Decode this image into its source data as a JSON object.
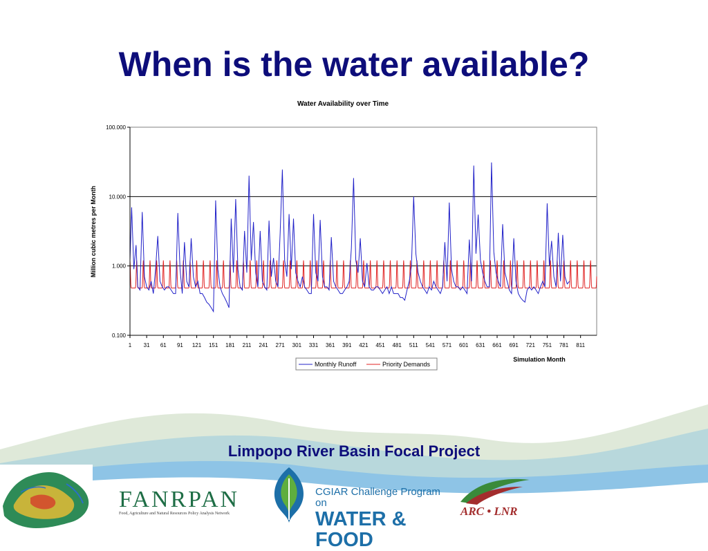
{
  "slide": {
    "title": "When is the water available?",
    "project_title": "Limpopo River Basin Focal Project"
  },
  "logos": {
    "fanrpan_name": "FANRPAN",
    "fanrpan_subtitle": "Food, Agriculture and Natural Resources Policy Analysis Network",
    "cgiar_line1": "CGIAR Challenge Program on",
    "cgiar_line2": "WATER & FOOD",
    "arc_text": "ARC • LNR"
  },
  "colors": {
    "title": "#0d0d7a",
    "runoff": "#2020c8",
    "demand": "#e02020",
    "wave_light": "#dfe9d9",
    "wave_blue": "#8ec4e6",
    "wave_teal": "#b8d8dc"
  },
  "chart_data": {
    "type": "line",
    "title": "Water Availability over Time",
    "xlabel": "Simulation Month",
    "ylabel": "Million cubic metres per Month",
    "yscale": "log",
    "ylim": [
      0.1,
      100
    ],
    "yticks": [
      "0.100",
      "1.000",
      "10.000",
      "100.000"
    ],
    "xlim": [
      1,
      840
    ],
    "xticks": [
      "1",
      "31",
      "61",
      "91",
      "121",
      "151",
      "181",
      "211",
      "241",
      "271",
      "301",
      "331",
      "361",
      "391",
      "421",
      "451",
      "481",
      "511",
      "541",
      "571",
      "601",
      "631",
      "661",
      "691",
      "721",
      "751",
      "781",
      "811"
    ],
    "grid": "horizontal",
    "legend_position": "bottom",
    "series": [
      {
        "name": "Monthly Runoff",
        "color": "#2020c8",
        "points": [
          [
            1,
            1.2
          ],
          [
            4,
            7.0
          ],
          [
            8,
            0.9
          ],
          [
            12,
            2.0
          ],
          [
            15,
            0.5
          ],
          [
            19,
            0.45
          ],
          [
            23,
            6.0
          ],
          [
            27,
            0.7
          ],
          [
            31,
            0.5
          ],
          [
            35,
            0.45
          ],
          [
            39,
            0.6
          ],
          [
            43,
            0.4
          ],
          [
            47,
            0.9
          ],
          [
            51,
            2.7
          ],
          [
            55,
            0.6
          ],
          [
            59,
            0.5
          ],
          [
            63,
            0.45
          ],
          [
            67,
            0.5
          ],
          [
            71,
            0.5
          ],
          [
            75,
            0.45
          ],
          [
            79,
            0.4
          ],
          [
            83,
            0.4
          ],
          [
            87,
            5.8
          ],
          [
            91,
            0.9
          ],
          [
            95,
            0.4
          ],
          [
            99,
            2.2
          ],
          [
            103,
            0.6
          ],
          [
            107,
            0.5
          ],
          [
            111,
            2.5
          ],
          [
            115,
            0.7
          ],
          [
            119,
            0.5
          ],
          [
            123,
            0.6
          ],
          [
            127,
            0.4
          ],
          [
            131,
            0.4
          ],
          [
            135,
            0.35
          ],
          [
            139,
            0.3
          ],
          [
            143,
            0.28
          ],
          [
            147,
            0.25
          ],
          [
            151,
            0.22
          ],
          [
            155,
            8.8
          ],
          [
            159,
            0.9
          ],
          [
            163,
            0.5
          ],
          [
            167,
            0.4
          ],
          [
            171,
            0.35
          ],
          [
            175,
            0.3
          ],
          [
            179,
            0.25
          ],
          [
            183,
            4.8
          ],
          [
            187,
            0.8
          ],
          [
            191,
            9.2
          ],
          [
            195,
            0.9
          ],
          [
            199,
            0.5
          ],
          [
            203,
            0.45
          ],
          [
            207,
            3.2
          ],
          [
            211,
            0.8
          ],
          [
            215,
            20.0
          ],
          [
            219,
            1.2
          ],
          [
            223,
            4.3
          ],
          [
            227,
            0.8
          ],
          [
            231,
            0.5
          ],
          [
            235,
            3.2
          ],
          [
            239,
            0.6
          ],
          [
            243,
            0.5
          ],
          [
            247,
            0.45
          ],
          [
            251,
            4.5
          ],
          [
            255,
            0.7
          ],
          [
            259,
            1.3
          ],
          [
            263,
            0.6
          ],
          [
            267,
            0.5
          ],
          [
            271,
            3.0
          ],
          [
            275,
            24.5
          ],
          [
            279,
            1.2
          ],
          [
            283,
            0.7
          ],
          [
            287,
            5.6
          ],
          [
            291,
            0.9
          ],
          [
            295,
            4.8
          ],
          [
            299,
            0.8
          ],
          [
            303,
            0.6
          ],
          [
            307,
            0.5
          ],
          [
            311,
            0.7
          ],
          [
            315,
            0.5
          ],
          [
            319,
            0.45
          ],
          [
            323,
            0.4
          ],
          [
            327,
            0.4
          ],
          [
            331,
            5.6
          ],
          [
            335,
            0.8
          ],
          [
            339,
            0.6
          ],
          [
            343,
            4.6
          ],
          [
            347,
            0.7
          ],
          [
            351,
            0.5
          ],
          [
            355,
            0.5
          ],
          [
            359,
            0.45
          ],
          [
            363,
            2.6
          ],
          [
            367,
            0.6
          ],
          [
            371,
            0.5
          ],
          [
            375,
            0.45
          ],
          [
            379,
            0.4
          ],
          [
            383,
            0.4
          ],
          [
            387,
            0.45
          ],
          [
            391,
            0.5
          ],
          [
            395,
            0.6
          ],
          [
            399,
            1.8
          ],
          [
            403,
            18.5
          ],
          [
            407,
            1.2
          ],
          [
            411,
            0.8
          ],
          [
            415,
            2.5
          ],
          [
            419,
            0.6
          ],
          [
            423,
            0.5
          ],
          [
            427,
            1.1
          ],
          [
            431,
            0.5
          ],
          [
            435,
            0.45
          ],
          [
            439,
            0.45
          ],
          [
            443,
            0.5
          ],
          [
            447,
            0.5
          ],
          [
            451,
            0.45
          ],
          [
            455,
            0.4
          ],
          [
            459,
            0.45
          ],
          [
            463,
            0.5
          ],
          [
            467,
            0.4
          ],
          [
            471,
            0.5
          ],
          [
            475,
            0.4
          ],
          [
            479,
            0.4
          ],
          [
            483,
            0.4
          ],
          [
            487,
            0.35
          ],
          [
            491,
            0.35
          ],
          [
            495,
            0.32
          ],
          [
            499,
            0.45
          ],
          [
            503,
            0.6
          ],
          [
            507,
            1.0
          ],
          [
            511,
            10.0
          ],
          [
            515,
            1.5
          ],
          [
            519,
            0.8
          ],
          [
            523,
            0.6
          ],
          [
            527,
            0.5
          ],
          [
            531,
            0.45
          ],
          [
            535,
            0.4
          ],
          [
            539,
            0.5
          ],
          [
            543,
            0.45
          ],
          [
            547,
            0.6
          ],
          [
            551,
            0.5
          ],
          [
            555,
            0.45
          ],
          [
            559,
            0.4
          ],
          [
            563,
            0.5
          ],
          [
            567,
            2.2
          ],
          [
            571,
            0.6
          ],
          [
            575,
            8.2
          ],
          [
            579,
            0.9
          ],
          [
            583,
            0.6
          ],
          [
            587,
            0.5
          ],
          [
            591,
            0.5
          ],
          [
            595,
            0.45
          ],
          [
            599,
            0.5
          ],
          [
            603,
            0.45
          ],
          [
            607,
            0.4
          ],
          [
            611,
            2.4
          ],
          [
            615,
            0.6
          ],
          [
            619,
            28.0
          ],
          [
            623,
            1.5
          ],
          [
            627,
            5.5
          ],
          [
            631,
            1.2
          ],
          [
            635,
            0.8
          ],
          [
            639,
            0.6
          ],
          [
            643,
            0.5
          ],
          [
            647,
            0.5
          ],
          [
            651,
            31.0
          ],
          [
            655,
            1.6
          ],
          [
            659,
            0.8
          ],
          [
            663,
            0.6
          ],
          [
            667,
            0.5
          ],
          [
            671,
            4.0
          ],
          [
            675,
            0.8
          ],
          [
            679,
            0.6
          ],
          [
            683,
            0.45
          ],
          [
            687,
            0.4
          ],
          [
            691,
            2.5
          ],
          [
            695,
            0.6
          ],
          [
            699,
            0.4
          ],
          [
            703,
            0.35
          ],
          [
            707,
            0.32
          ],
          [
            711,
            0.3
          ],
          [
            715,
            0.45
          ],
          [
            719,
            0.5
          ],
          [
            723,
            0.45
          ],
          [
            727,
            0.5
          ],
          [
            731,
            0.45
          ],
          [
            735,
            0.4
          ],
          [
            739,
            0.5
          ],
          [
            743,
            0.6
          ],
          [
            747,
            0.5
          ],
          [
            751,
            8.0
          ],
          [
            755,
            1.0
          ],
          [
            759,
            2.3
          ],
          [
            763,
            0.7
          ],
          [
            767,
            0.5
          ],
          [
            771,
            3.0
          ],
          [
            775,
            0.6
          ],
          [
            779,
            2.8
          ],
          [
            783,
            0.7
          ],
          [
            787,
            0.55
          ],
          [
            791,
            0.6
          ]
        ]
      },
      {
        "name": "Priority Demands",
        "color": "#e02020",
        "pattern_period_months": 12,
        "min": 0.48,
        "max": 1.2
      }
    ]
  }
}
